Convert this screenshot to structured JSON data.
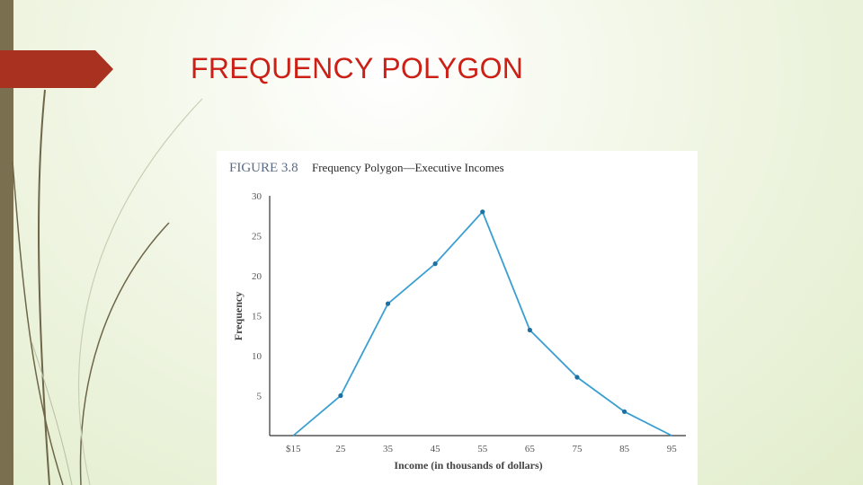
{
  "slide": {
    "title": "FREQUENCY POLYGON"
  },
  "colors": {
    "title": "#cc1f16",
    "line": "#3a9fd0",
    "marker_arrow": "#a8321f",
    "left_bar": "#7a7050"
  },
  "chart_data": {
    "type": "line",
    "figure_number": "FIGURE 3.8",
    "title": "Frequency Polygon—Executive Incomes",
    "xlabel": "Income (in thousands of dollars)",
    "ylabel": "Frequency",
    "x": [
      15,
      25,
      35,
      45,
      55,
      65,
      75,
      85,
      95
    ],
    "x_tick_labels": [
      "$15",
      "25",
      "35",
      "45",
      "55",
      "65",
      "75",
      "85",
      "95"
    ],
    "y_ticks": [
      5,
      10,
      15,
      20,
      25,
      30
    ],
    "series": [
      {
        "values": [
          0,
          5,
          16.5,
          21.5,
          28,
          13.2,
          7.3,
          3,
          0
        ]
      }
    ],
    "xlim": [
      10,
      98
    ],
    "ylim": [
      0,
      30
    ],
    "grid": false,
    "markers": true
  }
}
